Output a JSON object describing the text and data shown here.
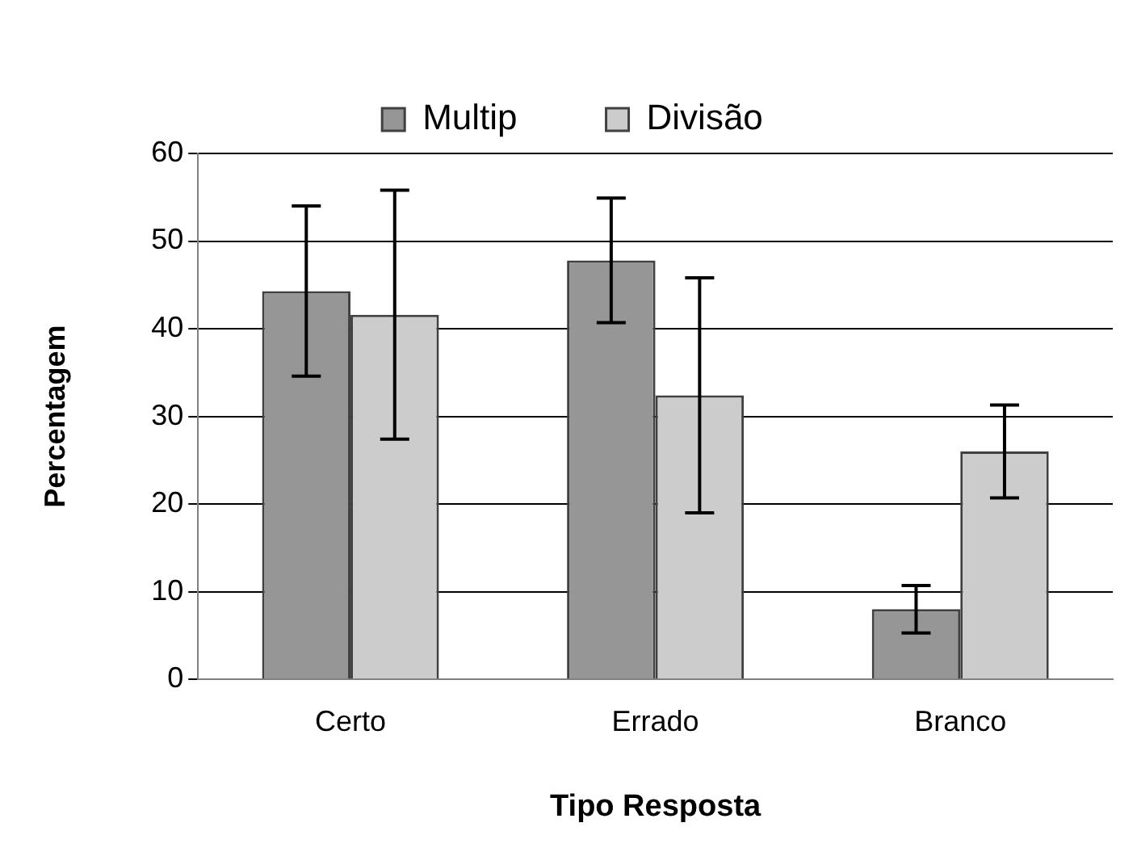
{
  "chart_data": {
    "type": "bar",
    "xlabel": "Tipo Resposta",
    "ylabel": "Percentagem",
    "categories": [
      "Certo",
      "Errado",
      "Branco"
    ],
    "series": [
      {
        "name": "Multip",
        "color": "#969696",
        "values": [
          44.3,
          47.8,
          8.0
        ],
        "errors": [
          9.7,
          7.1,
          2.7
        ]
      },
      {
        "name": "Divisão",
        "color": "#cccccc",
        "values": [
          41.6,
          32.4,
          26.0
        ],
        "errors": [
          14.2,
          13.4,
          5.3
        ]
      }
    ],
    "ylim": [
      0,
      60
    ],
    "yticks": [
      0,
      10,
      20,
      30,
      40,
      50,
      60
    ],
    "grid": "y",
    "legend": "top"
  }
}
